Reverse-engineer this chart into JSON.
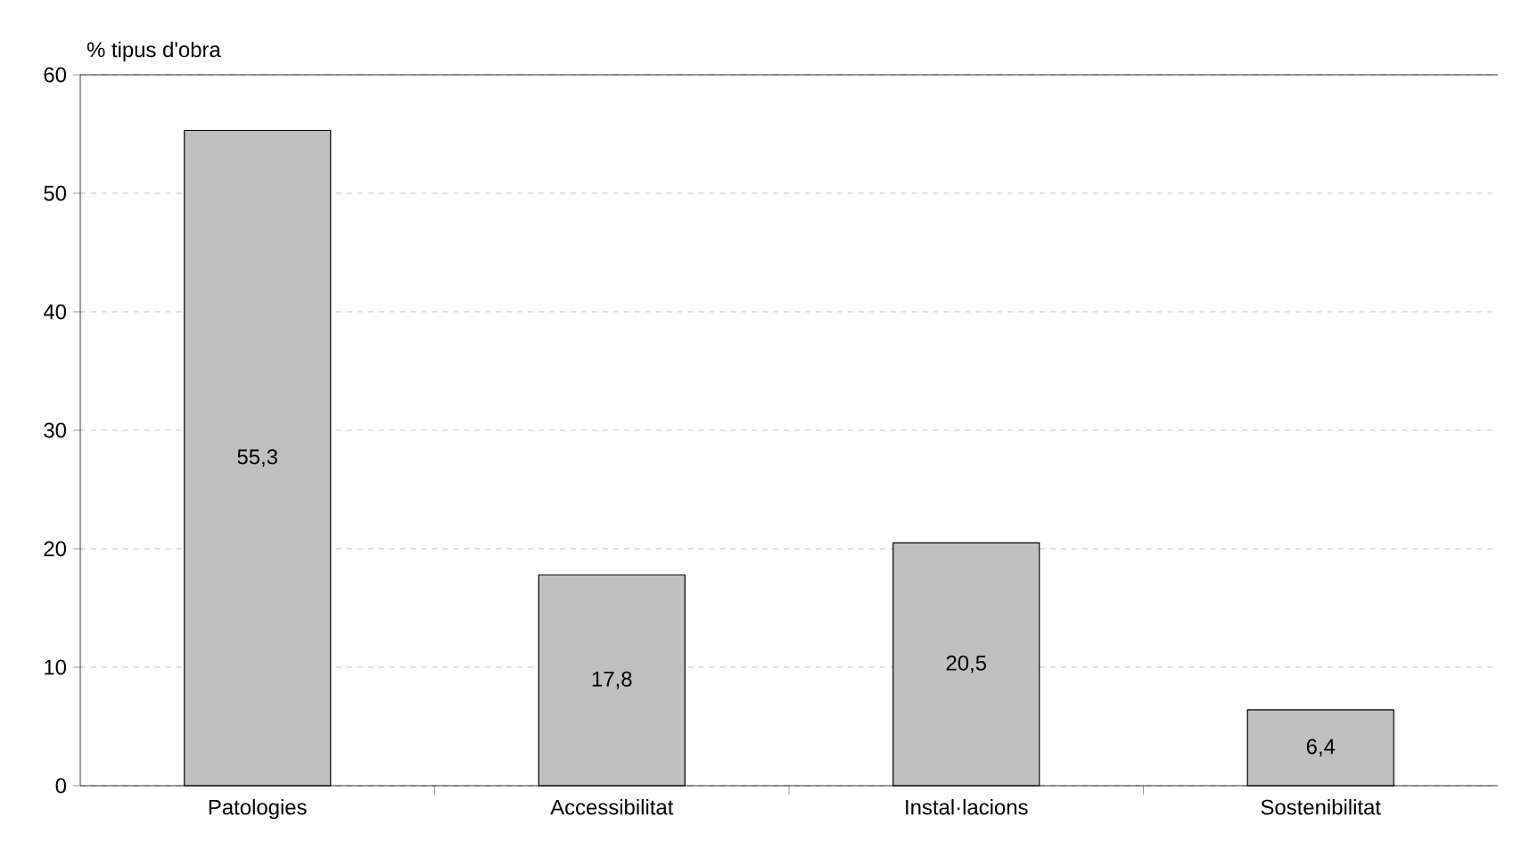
{
  "chart_data": {
    "type": "bar",
    "ylabel": "% tipus d'obra",
    "categories": [
      "Patologies",
      "Accessibilitat",
      "Instal·lacions",
      "Sostenibilitat"
    ],
    "values": [
      55.3,
      17.8,
      20.5,
      6.4
    ],
    "value_labels": [
      "55,3",
      "17,8",
      "20,5",
      "6,4"
    ],
    "color": "#c0c0c0",
    "ylim": [
      0,
      60
    ],
    "yticks": [
      0,
      10,
      20,
      30,
      40,
      50,
      60
    ],
    "grid": "y"
  }
}
